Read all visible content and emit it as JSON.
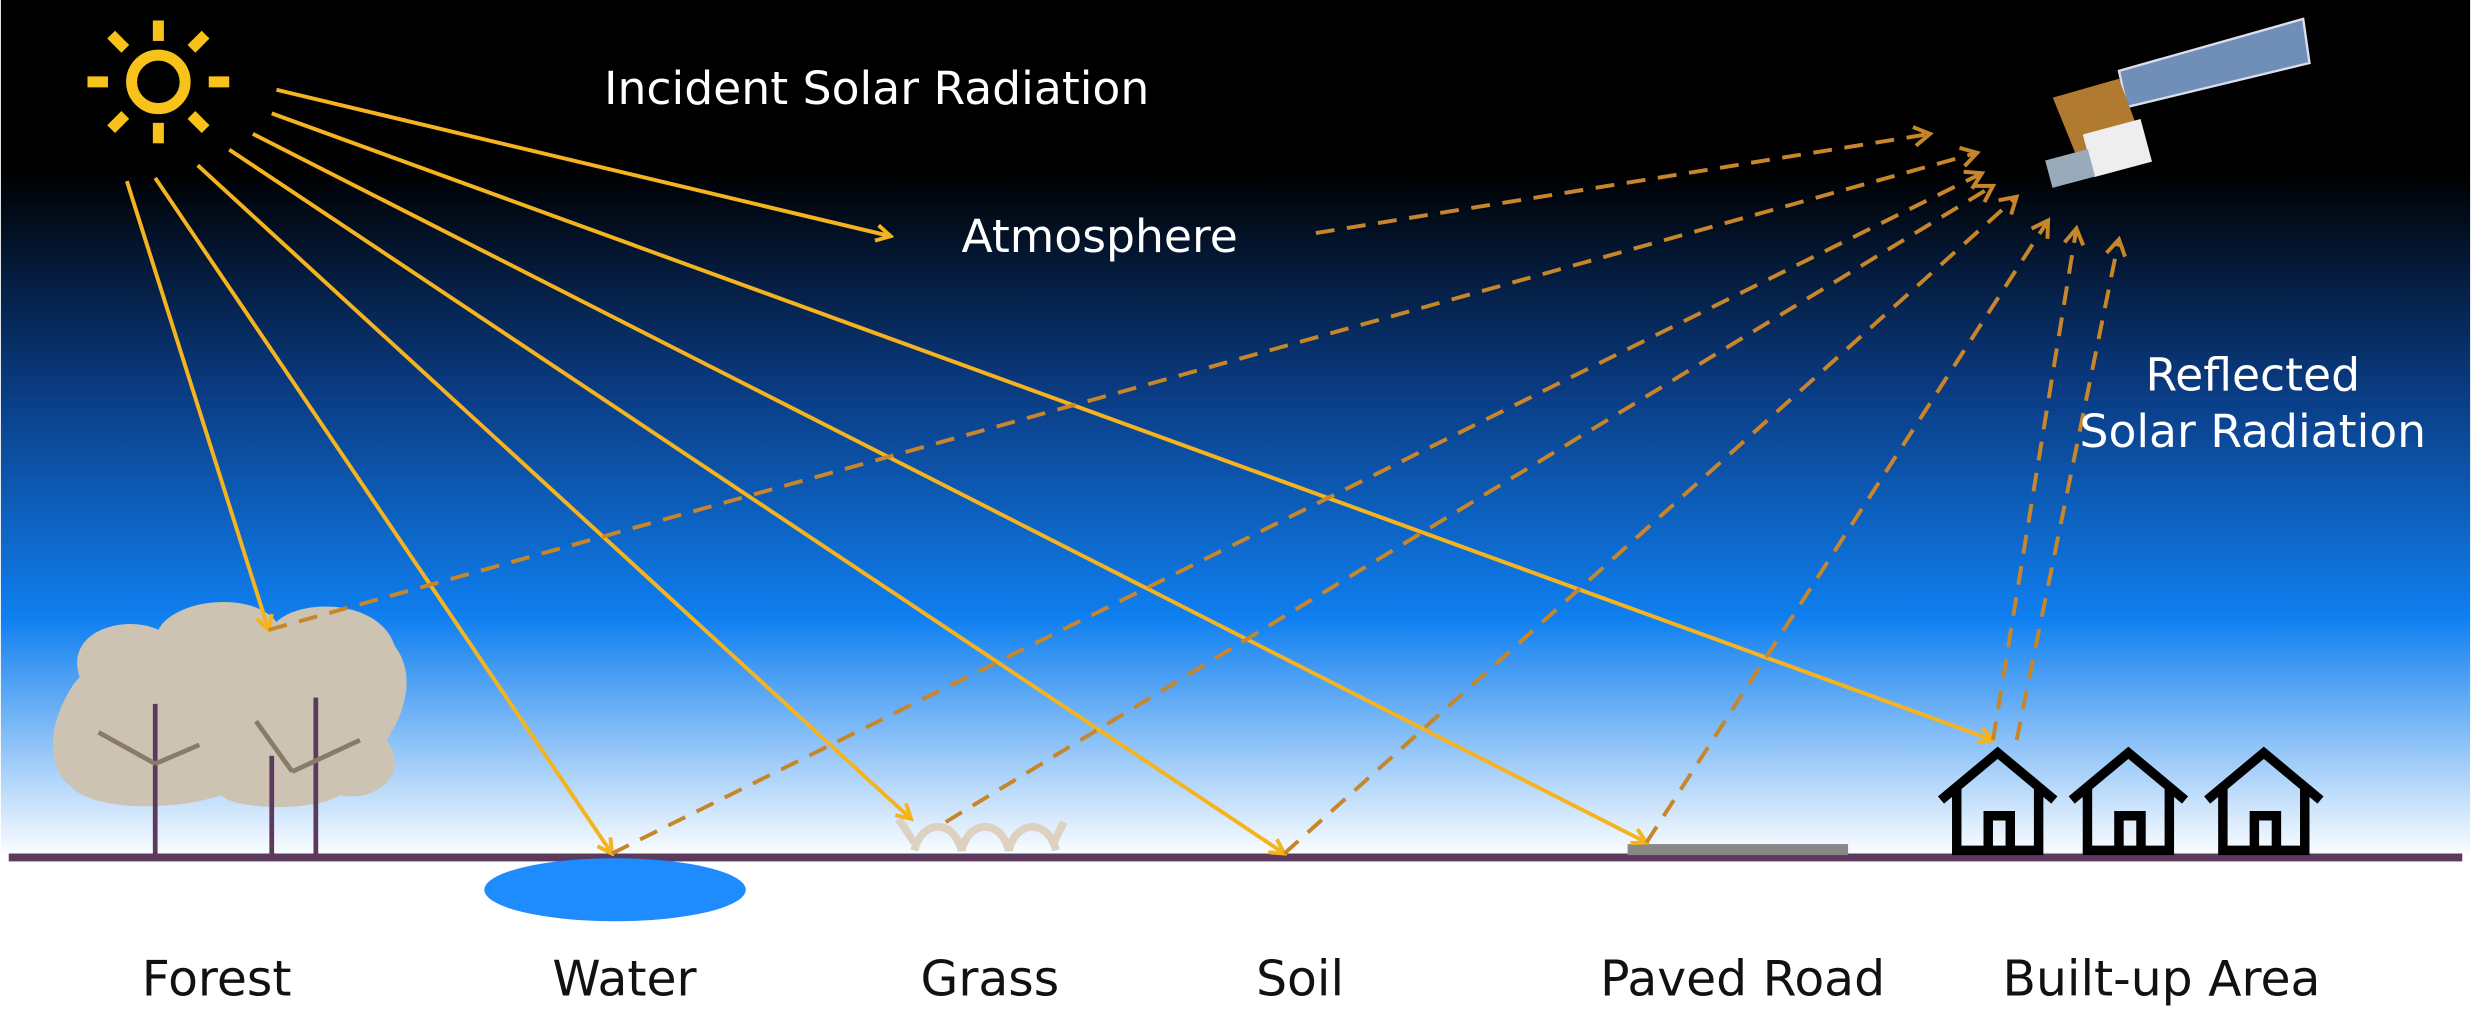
{
  "labels": {
    "incident": "Incident Solar Radiation",
    "atmosphere": "Atmosphere",
    "reflected": [
      "Reflected",
      "Solar Radiation"
    ]
  },
  "surfaces": [
    "Forest",
    "Water",
    "Grass",
    "Soil",
    "Paved Road",
    "Built-up Area"
  ]
}
